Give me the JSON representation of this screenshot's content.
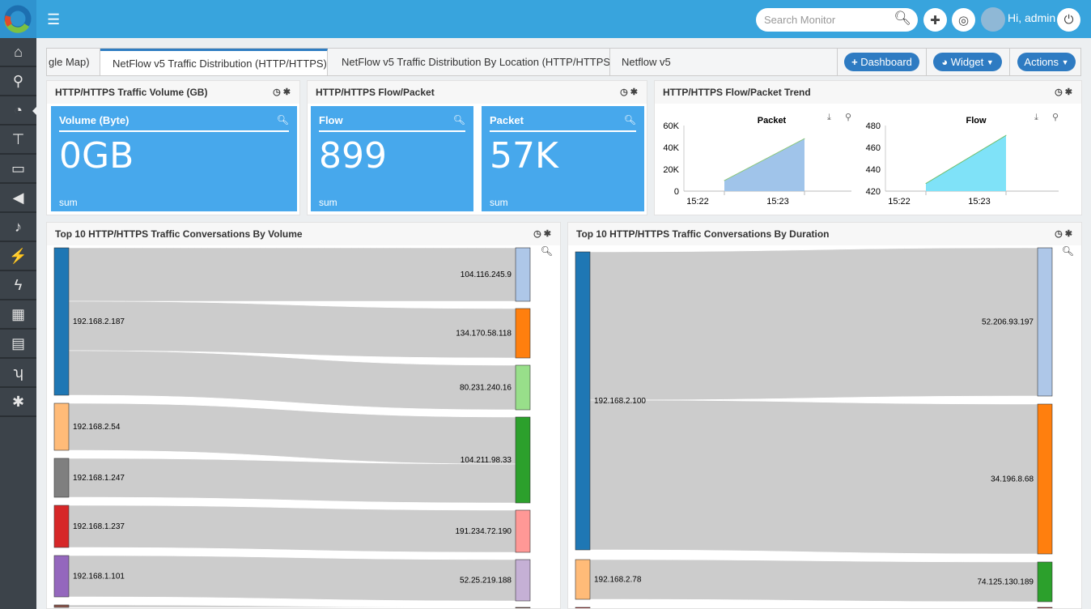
{
  "header": {
    "search_placeholder": "Search Monitor",
    "greeting": "Hi, admin"
  },
  "sidebar": {
    "items": [
      {
        "icon": "home-icon"
      },
      {
        "icon": "search-icon"
      },
      {
        "icon": "dashboard-icon",
        "active": true
      },
      {
        "icon": "sitemap-icon"
      },
      {
        "icon": "monitor-icon"
      },
      {
        "icon": "bullhorn-icon"
      },
      {
        "icon": "bell-icon"
      },
      {
        "icon": "plug-icon"
      },
      {
        "icon": "bolt-icon"
      },
      {
        "icon": "calendar-icon"
      },
      {
        "icon": "file-icon"
      },
      {
        "icon": "branch-icon"
      },
      {
        "icon": "gear-icon"
      }
    ]
  },
  "tabs": [
    {
      "label": "gle Map)"
    },
    {
      "label": "NetFlow v5 Traffic Distribution (HTTP/HTTPS)",
      "active": true
    },
    {
      "label": "NetFlow v5 Traffic Distribution By Location (HTTP/HTTPS)"
    },
    {
      "label": "Netflow v5"
    }
  ],
  "toolbar": {
    "dashboard": "Dashboard",
    "widget": "Widget",
    "actions": "Actions"
  },
  "widgets": {
    "volume": {
      "title": "HTTP/HTTPS Traffic Volume (GB)",
      "card": {
        "label": "Volume (Byte)",
        "value": "0GB",
        "agg": "sum"
      }
    },
    "flowpacket": {
      "title": "HTTP/HTTPS Flow/Packet",
      "cards": [
        {
          "label": "Flow",
          "value": "899",
          "agg": "sum"
        },
        {
          "label": "Packet",
          "value": "57K",
          "agg": "sum"
        }
      ]
    },
    "trend": {
      "title": "HTTP/HTTPS Flow/Packet Trend"
    },
    "conv_volume": {
      "title": "Top 10 HTTP/HTTPS Traffic Conversations By Volume"
    },
    "conv_duration": {
      "title": "Top 10 HTTP/HTTPS Traffic Conversations By Duration"
    }
  },
  "chart_data": [
    {
      "type": "area",
      "title": "Packet",
      "x": [
        "15:22:20",
        "15:23:20"
      ],
      "values": [
        9700,
        48000
      ],
      "ylim": [
        0,
        60000
      ],
      "yticks": [
        "0",
        "20K",
        "40K",
        "60K"
      ],
      "xticks": [
        "15:22",
        "15:23"
      ],
      "color": "#a0c4ea",
      "line": "#8bc77b"
    },
    {
      "type": "area",
      "title": "Flow",
      "x": [
        "15:22:20",
        "15:23:20"
      ],
      "values": [
        427,
        471
      ],
      "ylim": [
        420,
        480
      ],
      "yticks": [
        "420",
        "440",
        "460",
        "480"
      ],
      "xticks": [
        "15:22",
        "15:23"
      ],
      "color": "#7fe2f8",
      "line": "#6fbf6f"
    },
    {
      "type": "sankey",
      "left": [
        {
          "name": "192.168.2.187",
          "color": "#1f77b4"
        },
        {
          "name": "192.168.2.54",
          "color": "#ffbb78"
        },
        {
          "name": "192.168.1.247",
          "color": "#7f7f7f"
        },
        {
          "name": "192.168.1.237",
          "color": "#d62728"
        },
        {
          "name": "192.168.1.101",
          "color": "#9467bd"
        },
        {
          "name": "",
          "color": "#8c564b"
        }
      ],
      "right": [
        {
          "name": "104.116.245.9",
          "color": "#aec7e8"
        },
        {
          "name": "134.170.58.118",
          "color": "#ff7f0e"
        },
        {
          "name": "80.231.240.16",
          "color": "#98df8a"
        },
        {
          "name": "104.211.98.33",
          "color": "#2ca02c"
        },
        {
          "name": "191.234.72.190",
          "color": "#ff9896"
        },
        {
          "name": "52.25.219.188",
          "color": "#c5b0d5"
        },
        {
          "name": "",
          "color": "#8c564b"
        }
      ],
      "links": [
        [
          0,
          0,
          66
        ],
        [
          0,
          1,
          61
        ],
        [
          0,
          2,
          55
        ],
        [
          1,
          3,
          58
        ],
        [
          2,
          3,
          48
        ],
        [
          3,
          4,
          52
        ],
        [
          4,
          5,
          51
        ],
        [
          5,
          6,
          40
        ]
      ]
    },
    {
      "type": "sankey",
      "left": [
        {
          "name": "192.168.2.100",
          "color": "#1f77b4"
        },
        {
          "name": "192.168.2.78",
          "color": "#ffbb78"
        },
        {
          "name": "",
          "color": "#d62728"
        }
      ],
      "right": [
        {
          "name": "52.206.93.197",
          "color": "#aec7e8"
        },
        {
          "name": "34.196.8.68",
          "color": "#ff7f0e"
        },
        {
          "name": "74.125.130.189",
          "color": "#2ca02c"
        },
        {
          "name": "",
          "color": "#d62728"
        }
      ],
      "links": [
        [
          0,
          0,
          183
        ],
        [
          0,
          1,
          185
        ],
        [
          1,
          2,
          49
        ],
        [
          2,
          3,
          40
        ]
      ]
    }
  ]
}
